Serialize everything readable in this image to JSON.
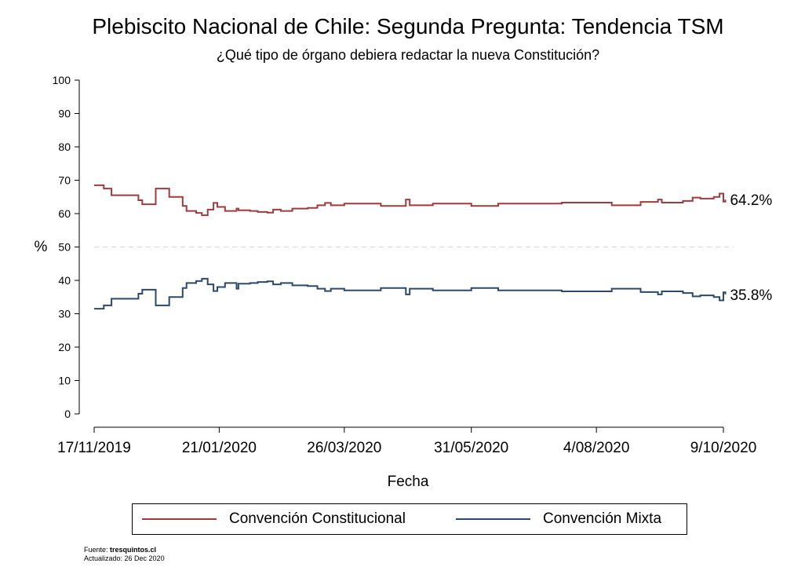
{
  "chart_data": {
    "type": "line",
    "title": "Plebiscito Nacional de Chile: Segunda Pregunta: Tendencia TSM",
    "subtitle": "¿Qué tipo de órgano debiera redactar la nueva Constitución?",
    "xlabel": "Fecha",
    "ylabel": "%",
    "ylim": [
      0,
      100
    ],
    "yticks": [
      0,
      10,
      20,
      30,
      40,
      50,
      60,
      70,
      80,
      90,
      100
    ],
    "x_range_days": [
      0,
      327
    ],
    "xticks": [
      {
        "day": 0,
        "label": "17/11/2019"
      },
      {
        "day": 65,
        "label": "21/01/2020"
      },
      {
        "day": 130,
        "label": "26/03/2020"
      },
      {
        "day": 196,
        "label": "31/05/2020"
      },
      {
        "day": 261,
        "label": "4/08/2020"
      },
      {
        "day": 327,
        "label": "9/10/2020"
      }
    ],
    "reference_line": 50,
    "grid": false,
    "legend_position": "bottom",
    "series": [
      {
        "name": "Convención Constitucional",
        "color": "#a03a3c",
        "end_label": "64.2%",
        "points": [
          [
            0,
            68.5
          ],
          [
            5,
            67.5
          ],
          [
            9,
            65.5
          ],
          [
            23,
            64
          ],
          [
            25,
            62.8
          ],
          [
            32,
            67.5
          ],
          [
            39,
            65
          ],
          [
            46,
            62.3
          ],
          [
            48,
            60.8
          ],
          [
            53,
            60.2
          ],
          [
            56,
            59.5
          ],
          [
            59,
            61.2
          ],
          [
            62,
            63.2
          ],
          [
            64,
            62
          ],
          [
            68,
            60.8
          ],
          [
            74,
            61.5
          ],
          [
            75,
            61
          ],
          [
            81,
            60.8
          ],
          [
            85,
            60.5
          ],
          [
            90,
            60.3
          ],
          [
            93,
            61.2
          ],
          [
            97,
            60.8
          ],
          [
            103,
            61.5
          ],
          [
            111,
            61.7
          ],
          [
            116,
            62.5
          ],
          [
            120,
            63.2
          ],
          [
            123,
            62.5
          ],
          [
            130,
            63
          ],
          [
            149,
            62.3
          ],
          [
            162,
            64.2
          ],
          [
            164,
            62.5
          ],
          [
            176,
            63
          ],
          [
            196,
            62.3
          ],
          [
            210,
            63
          ],
          [
            243,
            63.3
          ],
          [
            269,
            62.5
          ],
          [
            284,
            63.5
          ],
          [
            293,
            64.2
          ],
          [
            295,
            63.3
          ],
          [
            306,
            63.8
          ],
          [
            311,
            64.8
          ],
          [
            315,
            64.5
          ],
          [
            322,
            65
          ],
          [
            325,
            66
          ],
          [
            327,
            63.6
          ],
          [
            328,
            64.2
          ]
        ]
      },
      {
        "name": "Convención Mixta",
        "color": "#2b4a6b",
        "end_label": "35.8%",
        "points": [
          [
            0,
            31.5
          ],
          [
            5,
            32.5
          ],
          [
            9,
            34.5
          ],
          [
            23,
            36
          ],
          [
            25,
            37.2
          ],
          [
            32,
            32.5
          ],
          [
            39,
            35
          ],
          [
            46,
            37.7
          ],
          [
            48,
            39.2
          ],
          [
            53,
            39.8
          ],
          [
            56,
            40.5
          ],
          [
            59,
            38.8
          ],
          [
            62,
            36.8
          ],
          [
            64,
            38
          ],
          [
            68,
            39.2
          ],
          [
            74,
            37.5
          ],
          [
            75,
            39
          ],
          [
            81,
            39.2
          ],
          [
            85,
            39.5
          ],
          [
            90,
            39.7
          ],
          [
            93,
            38.8
          ],
          [
            97,
            39.2
          ],
          [
            103,
            38.5
          ],
          [
            111,
            38.3
          ],
          [
            116,
            37.5
          ],
          [
            120,
            36.8
          ],
          [
            123,
            37.5
          ],
          [
            130,
            37
          ],
          [
            149,
            37.7
          ],
          [
            162,
            35.8
          ],
          [
            164,
            37.5
          ],
          [
            176,
            37
          ],
          [
            196,
            37.7
          ],
          [
            210,
            37
          ],
          [
            243,
            36.7
          ],
          [
            269,
            37.5
          ],
          [
            284,
            36.5
          ],
          [
            293,
            35.8
          ],
          [
            295,
            36.7
          ],
          [
            306,
            36.2
          ],
          [
            311,
            35.2
          ],
          [
            315,
            35.5
          ],
          [
            322,
            35
          ],
          [
            325,
            34
          ],
          [
            327,
            36.4
          ],
          [
            328,
            35.8
          ]
        ]
      }
    ]
  },
  "footer": {
    "source_prefix": "Fuente:",
    "source_name": "tresquintos.cl",
    "updated": "Actualizado: 26 Dec 2020"
  }
}
